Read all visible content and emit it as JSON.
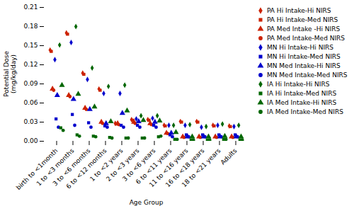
{
  "chart_data": {
    "type": "scatter",
    "xlabel": "Age Group",
    "ylabel": "Potential Dose\n(mg/kg/day)",
    "categories": [
      "birth to <1month",
      "1 to <3 months",
      "3 to <6 months",
      "6 to <12 months",
      "1 to <2 years",
      "2 to <3 years",
      "3 to <6 years",
      "6 to <11 years",
      "11 to <16 years",
      "16 to <18 years",
      "18 to <21 years",
      "Adults"
    ],
    "series": [
      {
        "name": "PA Hi Intake-Hi NIRS",
        "color": "#cc2200",
        "marker": "diamond",
        "values": [
          0.143,
          0.17,
          0.107,
          0.082,
          0.028,
          0.034,
          0.034,
          0.025,
          0.031,
          0.031,
          0.025,
          0.024
        ]
      },
      {
        "name": "PA Hi Intake-Med NIRS",
        "color": "#cc2200",
        "marker": "square",
        "values": [
          0.141,
          0.168,
          0.105,
          0.08,
          0.027,
          0.033,
          0.033,
          0.024,
          0.03,
          0.03,
          0.024,
          0.023
        ]
      },
      {
        "name": "PA Med Intake -Hi NIRS",
        "color": "#cc2200",
        "marker": "triangle",
        "values": [
          0.082,
          0.072,
          0.052,
          0.03,
          0.028,
          0.03,
          0.028,
          0.013,
          0.007,
          0.007,
          0.007,
          0.007
        ]
      },
      {
        "name": "PA Med Intake-Med NIRS",
        "color": "#cc2200",
        "marker": "circle",
        "values": [
          0.08,
          0.07,
          0.05,
          0.028,
          0.026,
          0.028,
          0.026,
          0.012,
          0.006,
          0.006,
          0.006,
          0.006
        ]
      },
      {
        "name": "MN Hi Intake-Hi NIRS",
        "color": "#0000cc",
        "marker": "diamond",
        "values": [
          0.128,
          0.155,
          0.097,
          0.075,
          0.075,
          0.035,
          0.036,
          0.025,
          0.025,
          0.022,
          0.025,
          0.023
        ]
      },
      {
        "name": "MN Hi Intake-Med NIRS",
        "color": "#0000cc",
        "marker": "square",
        "values": [
          0.035,
          0.042,
          0.029,
          0.024,
          0.025,
          0.025,
          0.025,
          0.01,
          0.01,
          0.01,
          0.01,
          0.01
        ]
      },
      {
        "name": "MN Med Intake-Hi NIRS",
        "color": "#0000cc",
        "marker": "triangle",
        "values": [
          0.072,
          0.066,
          0.05,
          0.028,
          0.044,
          0.031,
          0.03,
          0.013,
          0.007,
          0.007,
          0.007,
          0.007
        ]
      },
      {
        "name": "MN Med Intake-Med NIRS",
        "color": "#0000cc",
        "marker": "circle",
        "values": [
          0.022,
          0.025,
          0.022,
          0.022,
          0.022,
          0.022,
          0.022,
          0.007,
          0.007,
          0.007,
          0.007,
          0.007
        ]
      },
      {
        "name": "IA Hi Intake-Hi NIRS",
        "color": "#006600",
        "marker": "diamond",
        "values": [
          0.151,
          0.18,
          0.115,
          0.086,
          0.088,
          0.04,
          0.04,
          0.025,
          0.026,
          0.023,
          0.027,
          0.025
        ]
      },
      {
        "name": "IA Hi Intake-Med NIRS",
        "color": "#006600",
        "marker": "square",
        "values": [
          0.021,
          0.01,
          0.008,
          0.006,
          0.005,
          0.005,
          0.007,
          0.003,
          0.002,
          0.002,
          0.003,
          0.002
        ]
      },
      {
        "name": "IA Med Intake-Hi NIRS",
        "color": "#006600",
        "marker": "triangle",
        "values": [
          0.088,
          0.074,
          0.054,
          0.031,
          0.048,
          0.033,
          0.032,
          0.014,
          0.007,
          0.007,
          0.008,
          0.007
        ]
      },
      {
        "name": "IA Med Intake-Med NIRS",
        "color": "#006600",
        "marker": "circle",
        "values": [
          0.017,
          0.008,
          0.007,
          0.005,
          0.005,
          0.005,
          0.008,
          0.003,
          0.002,
          0.002,
          0.003,
          0.002
        ]
      }
    ],
    "ylim": [
      0.0,
      0.21
    ],
    "yticks": [
      {
        "value": 0,
        "label": "0.00"
      },
      0.03,
      0.06,
      0.09,
      0.12,
      0.15,
      0.18,
      0.21
    ],
    "grid": false,
    "legend": "right"
  }
}
